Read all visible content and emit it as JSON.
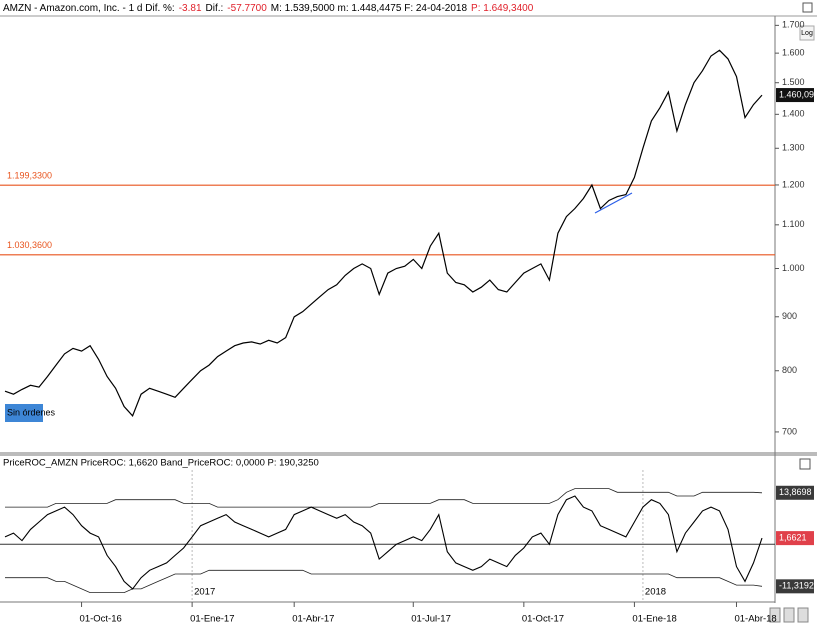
{
  "header": [
    {
      "text": "AMZN - Amazon.com, Inc. - 1 d  Dif. %:",
      "color": "#000000"
    },
    {
      "text": "-3.81",
      "color": "#e0202a"
    },
    {
      "text": "Dif.:",
      "color": "#000000"
    },
    {
      "text": "-57.7700",
      "color": "#e0202a"
    },
    {
      "text": "M: 1.539,5000  m: 1.448,4475  F: 24-04-2018",
      "color": "#000000"
    },
    {
      "text": "P: 1.649,3400",
      "color": "#e0202a"
    }
  ],
  "log_button": "Log",
  "orders_badge": "Sin órdenes",
  "chart_data": [
    {
      "type": "line",
      "log_scale": true,
      "grid": false,
      "series": [
        {
          "name": "AMZN",
          "color": "#000000",
          "values": [
            765,
            760,
            768,
            775,
            772,
            790,
            810,
            830,
            840,
            835,
            845,
            820,
            790,
            770,
            740,
            725,
            760,
            770,
            765,
            760,
            755,
            770,
            785,
            800,
            810,
            825,
            835,
            845,
            850,
            852,
            848,
            855,
            850,
            860,
            900,
            910,
            925,
            940,
            955,
            965,
            985,
            1000,
            1010,
            1000,
            945,
            990,
            1000,
            1005,
            1020,
            1000,
            1050,
            1080,
            990,
            970,
            965,
            950,
            960,
            975,
            955,
            950,
            970,
            990,
            1000,
            1010,
            975,
            1080,
            1120,
            1140,
            1165,
            1200,
            1140,
            1160,
            1170,
            1175,
            1220,
            1300,
            1380,
            1420,
            1470,
            1350,
            1430,
            1500,
            1540,
            1590,
            1610,
            1580,
            1520,
            1390,
            1430,
            1460.09
          ]
        }
      ],
      "ylim": [
        670,
        1720
      ],
      "yticks": [
        700,
        800,
        900,
        {
          "value": 1000,
          "label": "1.000"
        },
        {
          "value": 1100,
          "label": "1.100"
        },
        {
          "value": 1200,
          "label": "1.200"
        },
        {
          "value": 1300,
          "label": "1.300"
        },
        {
          "value": 1400,
          "label": "1.400"
        },
        {
          "value": 1500,
          "label": "1.500"
        },
        {
          "value": 1600,
          "label": "1.600"
        },
        {
          "value": 1700,
          "label": "1.700"
        }
      ],
      "levels": [
        {
          "value": 1199.33,
          "label": "1.199,3300"
        },
        {
          "value": 1030.36,
          "label": "1.030,3600"
        }
      ],
      "level_color": "#e8541e",
      "last_price": {
        "value": 1460.09,
        "label": "1.460,09"
      }
    },
    {
      "type": "line",
      "title": "PriceROC_AMZN PriceROC: 1,6620 Band_PriceROC: 0,0000 P: 190,3250",
      "categories": [
        null,
        null,
        null,
        null,
        null,
        null,
        null,
        null,
        null,
        "01-Oct-16",
        null,
        null,
        null,
        null,
        null,
        null,
        null,
        null,
        null,
        null,
        null,
        null,
        "01-Ene-17",
        null,
        null,
        null,
        null,
        null,
        null,
        null,
        null,
        null,
        null,
        null,
        "01-Abr-17",
        null,
        null,
        null,
        null,
        null,
        null,
        null,
        null,
        null,
        null,
        null,
        null,
        null,
        "01-Jul-17",
        null,
        null,
        null,
        null,
        null,
        null,
        null,
        null,
        null,
        null,
        null,
        null,
        "01-Oct-17",
        null,
        null,
        null,
        null,
        null,
        null,
        null,
        null,
        null,
        null,
        null,
        null,
        "01-Ene-18",
        null,
        null,
        null,
        null,
        null,
        null,
        null,
        null,
        null,
        null,
        null,
        "01-Abr-18",
        null,
        null,
        null
      ],
      "year_labels": [
        null,
        null,
        null,
        null,
        null,
        null,
        null,
        null,
        null,
        null,
        null,
        null,
        null,
        null,
        null,
        null,
        null,
        null,
        null,
        null,
        null,
        null,
        "2017",
        null,
        null,
        null,
        null,
        null,
        null,
        null,
        null,
        null,
        null,
        null,
        null,
        null,
        null,
        null,
        null,
        null,
        null,
        null,
        null,
        null,
        null,
        null,
        null,
        null,
        null,
        null,
        null,
        null,
        null,
        null,
        null,
        null,
        null,
        null,
        null,
        null,
        null,
        null,
        null,
        null,
        null,
        null,
        null,
        null,
        null,
        null,
        null,
        null,
        null,
        null,
        null,
        "2018",
        null,
        null,
        null,
        null,
        null,
        null,
        null,
        null,
        null,
        null,
        null,
        null,
        null,
        null
      ],
      "values": [
        2,
        3,
        1,
        4,
        6,
        8,
        9,
        10,
        8,
        5,
        3,
        2,
        -3,
        -6,
        -10,
        -12,
        -9,
        -7,
        -6,
        -5,
        -3,
        -1,
        2,
        5,
        6,
        7,
        8,
        6,
        5,
        4,
        3,
        2,
        3,
        4,
        8,
        9,
        10,
        9,
        8,
        7,
        8,
        6,
        5,
        3,
        -4,
        -2,
        0,
        1,
        2,
        1,
        4,
        8,
        -2,
        -5,
        -6,
        -7,
        -6,
        -4,
        -5,
        -6,
        -3,
        -1,
        2,
        3,
        0,
        8,
        12,
        13,
        10,
        9,
        5,
        4,
        3,
        2,
        6,
        10,
        12,
        11,
        8,
        -2,
        3,
        6,
        9,
        10,
        9,
        4,
        -6,
        -10,
        -5,
        1.662
      ],
      "band_upper": [
        10,
        10,
        10,
        10,
        10,
        10,
        11,
        11,
        11,
        11,
        11,
        11,
        11,
        12,
        12,
        12,
        12,
        12,
        12,
        12,
        12,
        11,
        11,
        11,
        11,
        10,
        10,
        10,
        10,
        10,
        10,
        10,
        10,
        10,
        10,
        10,
        10,
        10,
        10,
        10,
        10,
        10,
        10,
        10,
        11,
        11,
        11,
        11,
        11,
        11,
        11,
        12,
        12,
        12,
        12,
        11,
        11,
        11,
        11,
        11,
        11,
        11,
        11,
        11,
        11,
        12,
        14,
        15,
        15,
        15,
        15,
        15,
        14,
        14,
        14,
        14,
        14,
        14,
        14,
        13,
        13,
        13,
        14,
        14,
        14,
        14,
        14,
        14,
        14,
        13.8698
      ],
      "band_lower": [
        -9,
        -9,
        -9,
        -9,
        -9,
        -9,
        -10,
        -10,
        -11,
        -12,
        -13,
        -13,
        -13,
        -13,
        -13,
        -12,
        -12,
        -11,
        -10,
        -9,
        -8,
        -8,
        -8,
        -8,
        -7,
        -7,
        -7,
        -7,
        -7,
        -7,
        -7,
        -7,
        -7,
        -7,
        -7,
        -7,
        -8,
        -8,
        -8,
        -8,
        -8,
        -8,
        -8,
        -8,
        -8,
        -8,
        -8,
        -8,
        -8,
        -8,
        -8,
        -8,
        -8,
        -8,
        -8,
        -8,
        -8,
        -8,
        -8,
        -8,
        -8,
        -8,
        -8,
        -8,
        -8,
        -8,
        -8,
        -8,
        -8,
        -8,
        -8,
        -8,
        -8,
        -8,
        -8,
        -8,
        -8,
        -8,
        -8,
        -9,
        -9,
        -9,
        -9,
        -9,
        -9,
        -10,
        -11,
        -11,
        -11,
        -11.3192
      ],
      "color": "#000000",
      "ylim": [
        -15,
        20
      ],
      "zero_line": true,
      "yticks": [
        {
          "value": 13.8698,
          "label": "13,8698"
        },
        {
          "value": 1.6621,
          "label": "1,6621"
        },
        {
          "value": -11.3192,
          "label": "-11,3192"
        }
      ],
      "tick_colors": [
        "#3a3a3a",
        "#e0404a",
        "#3a3a3a"
      ]
    }
  ]
}
